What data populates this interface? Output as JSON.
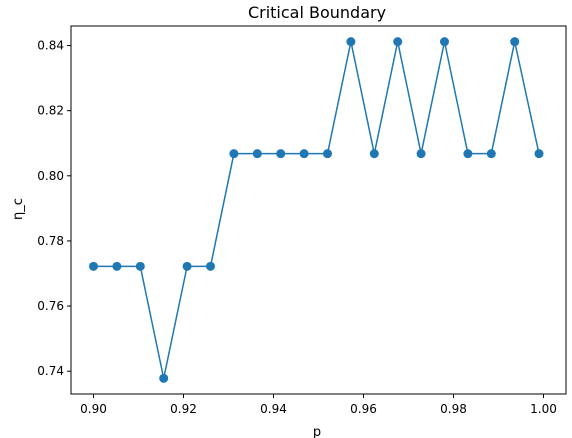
{
  "chart_data": {
    "type": "line",
    "title": "Critical Boundary",
    "xlabel": "p",
    "ylabel": "η_c",
    "xlim": [
      0.895,
      1.005
    ],
    "ylim": [
      0.733,
      0.846
    ],
    "grid": false,
    "x_ticks": [
      0.9,
      0.92,
      0.94,
      0.96,
      0.98,
      1.0
    ],
    "x_tick_labels": [
      "0.90",
      "0.92",
      "0.94",
      "0.96",
      "0.98",
      "1.00"
    ],
    "y_ticks": [
      0.74,
      0.76,
      0.78,
      0.8,
      0.82,
      0.84
    ],
    "y_tick_labels": [
      "0.74",
      "0.76",
      "0.78",
      "0.80",
      "0.82",
      "0.84"
    ],
    "series": [
      {
        "color": "#1f77b4",
        "marker": "circle",
        "x": [
          0.9,
          0.9052,
          0.9104,
          0.9156,
          0.9208,
          0.926,
          0.9312,
          0.9364,
          0.9416,
          0.9468,
          0.952,
          0.9572,
          0.9624,
          0.9676,
          0.9728,
          0.978,
          0.9832,
          0.9884,
          0.9936,
          0.999
        ],
        "y": [
          0.7722,
          0.7722,
          0.7722,
          0.7378,
          0.7722,
          0.7722,
          0.8068,
          0.8068,
          0.8068,
          0.8068,
          0.8068,
          0.8412,
          0.8068,
          0.8412,
          0.8068,
          0.8412,
          0.8068,
          0.8068,
          0.8412,
          0.8068
        ]
      }
    ]
  }
}
